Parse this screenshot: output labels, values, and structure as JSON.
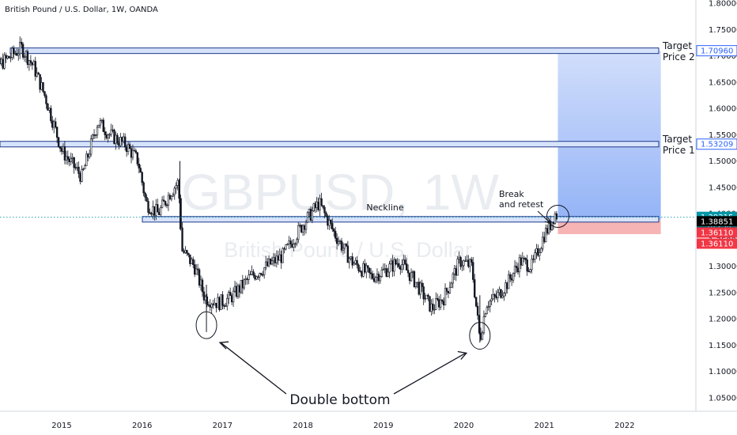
{
  "header": {
    "title": "British Pound / U.S. Dollar, 1W, OANDA"
  },
  "watermark": {
    "symbol": "GBPUSD, 1W",
    "name": "British Pound / U.S. Dollar"
  },
  "chart_data": {
    "type": "candlestick",
    "symbol": "GBPUSD",
    "timeframe": "1W",
    "x_ticks": [
      "2015",
      "2016",
      "2017",
      "2018",
      "2019",
      "2020",
      "2021",
      "2022"
    ],
    "y_ticks": [
      "1.80000",
      "1.75000",
      "1.70000",
      "1.65000",
      "1.60000",
      "1.55000",
      "1.50000",
      "1.45000",
      "1.40000",
      "1.35000",
      "1.30000",
      "1.25000",
      "1.20000",
      "1.15000",
      "1.10000",
      "1.05000"
    ],
    "ylim": [
      1.035,
      1.805
    ],
    "path": [
      [
        2014.0,
        1.645
      ],
      [
        2014.2,
        1.68
      ],
      [
        2014.5,
        1.715
      ],
      [
        2014.65,
        1.68
      ],
      [
        2014.8,
        1.62
      ],
      [
        2015.0,
        1.52
      ],
      [
        2015.15,
        1.49
      ],
      [
        2015.25,
        1.47
      ],
      [
        2015.45,
        1.575
      ],
      [
        2015.6,
        1.55
      ],
      [
        2015.8,
        1.53
      ],
      [
        2015.95,
        1.5
      ],
      [
        2016.05,
        1.42
      ],
      [
        2016.2,
        1.4
      ],
      [
        2016.35,
        1.44
      ],
      [
        2016.45,
        1.46
      ],
      [
        2016.5,
        1.33
      ],
      [
        2016.65,
        1.3
      ],
      [
        2016.78,
        1.24
      ],
      [
        2016.95,
        1.23
      ],
      [
        2017.1,
        1.24
      ],
      [
        2017.35,
        1.28
      ],
      [
        2017.55,
        1.3
      ],
      [
        2017.75,
        1.32
      ],
      [
        2018.0,
        1.38
      ],
      [
        2018.2,
        1.42
      ],
      [
        2018.4,
        1.36
      ],
      [
        2018.6,
        1.31
      ],
      [
        2018.85,
        1.28
      ],
      [
        2019.0,
        1.29
      ],
      [
        2019.2,
        1.31
      ],
      [
        2019.4,
        1.27
      ],
      [
        2019.6,
        1.22
      ],
      [
        2019.75,
        1.24
      ],
      [
        2019.95,
        1.31
      ],
      [
        2020.1,
        1.3
      ],
      [
        2020.2,
        1.16
      ],
      [
        2020.28,
        1.23
      ],
      [
        2020.4,
        1.24
      ],
      [
        2020.55,
        1.27
      ],
      [
        2020.7,
        1.31
      ],
      [
        2020.85,
        1.3
      ],
      [
        2021.0,
        1.36
      ],
      [
        2021.08,
        1.38
      ],
      [
        2021.13,
        1.4
      ],
      [
        2021.17,
        1.395
      ]
    ],
    "last_price": 1.39315,
    "countdown": "1d 23h",
    "neckline": 1.3885,
    "neckline_label": "Neckline",
    "targets": [
      {
        "name": "Target Price 1",
        "line1": "Target",
        "line2": "Price 1",
        "price": 1.53209,
        "label": "1.53209"
      },
      {
        "name": "Target Price 2",
        "line1": "Target",
        "line2": "Price 2",
        "price": 1.7096,
        "label": "1.70960"
      }
    ],
    "position": {
      "entry": 1.38851,
      "stop": 1.3611,
      "target": 1.7096,
      "entry_labels": [
        "1.38851",
        "1.38851"
      ],
      "stop_labels": [
        "1.36110",
        "1.36110"
      ],
      "time_start": 2021.17,
      "time_end": 2022.45
    },
    "annotations": {
      "break_retest_line1": "Break",
      "break_retest_line2": "and retest",
      "double_bottom": "Double bottom"
    },
    "bottoms": [
      {
        "time": 2016.8,
        "price": 1.185
      },
      {
        "time": 2020.2,
        "price": 1.165
      }
    ],
    "colors": {
      "bull": "#26a69a",
      "bear": "#ef5350",
      "profit_zone": "#9db8f7",
      "loss_zone": "#f7b4b4",
      "level_fill": "#d7e3fb",
      "level_border": "#1e3a8a",
      "last_price_tag": "#0097a7",
      "entry_tag": "#000000",
      "stop_tag": "#f23645",
      "target_tag": "#2962ff"
    }
  }
}
